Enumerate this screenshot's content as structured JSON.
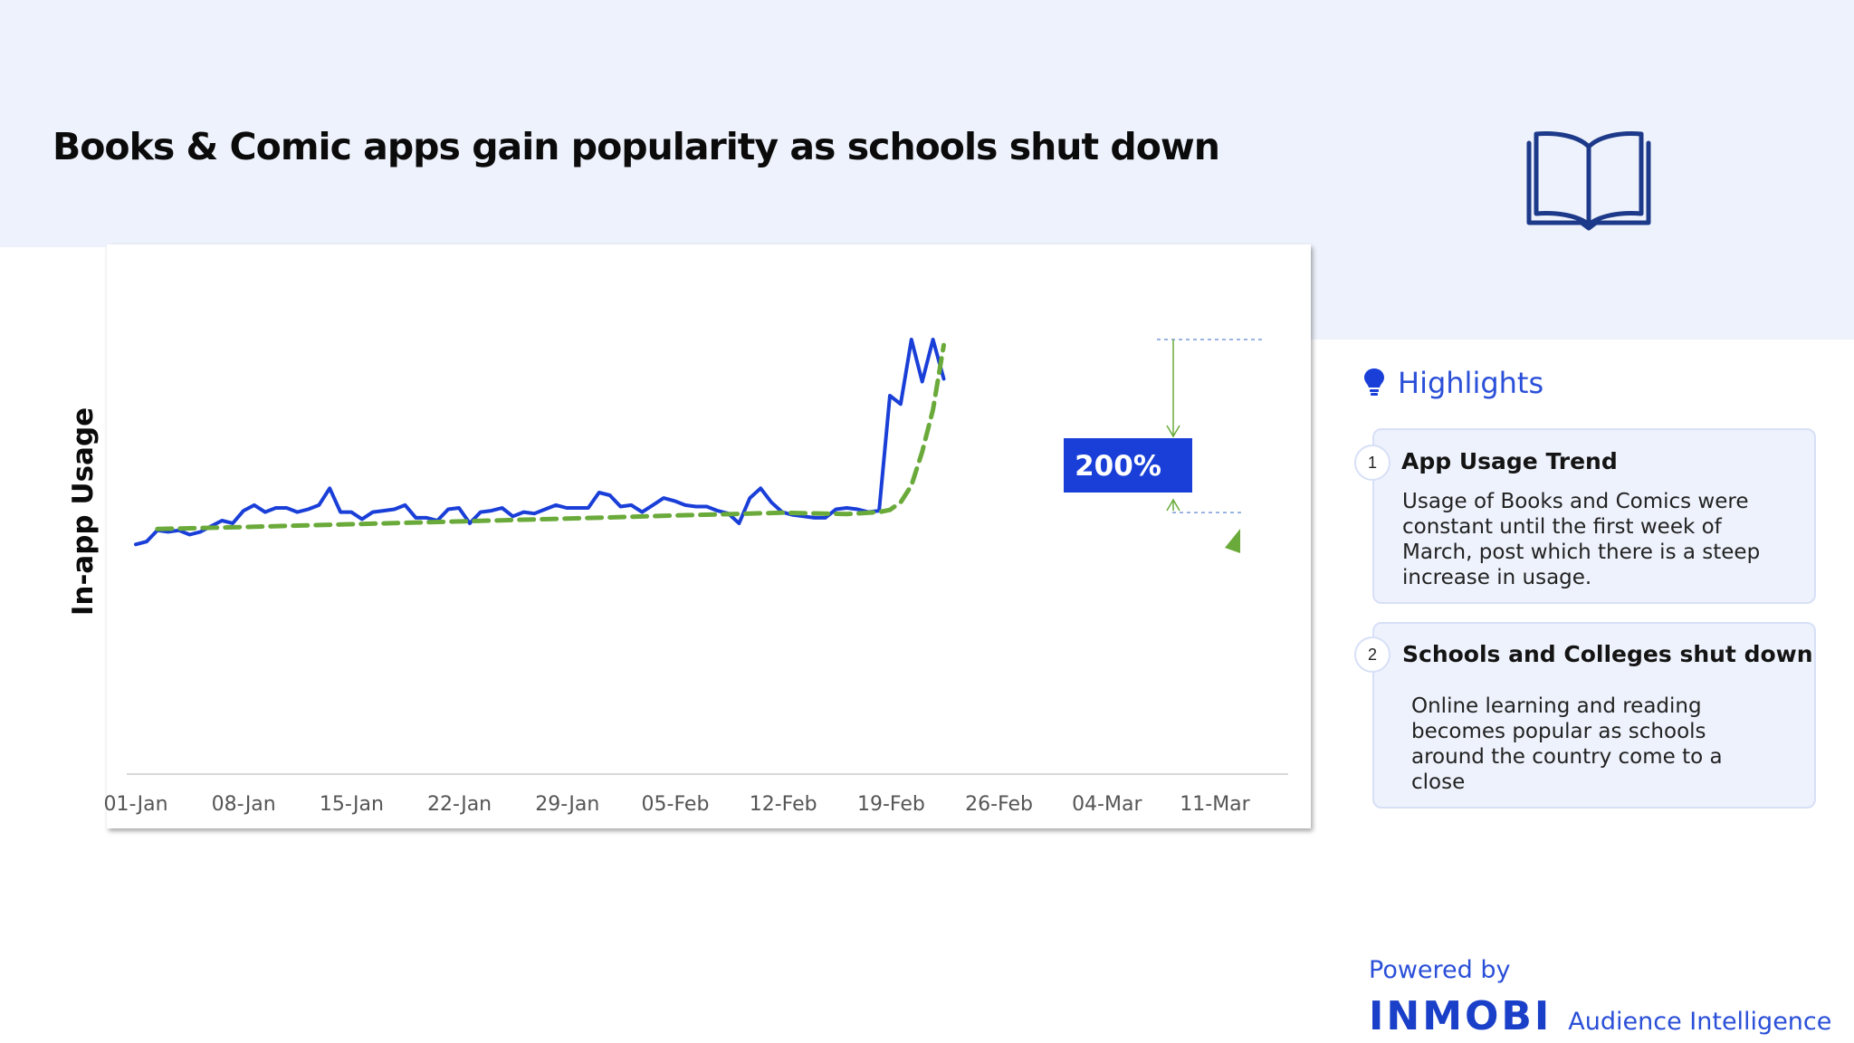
{
  "title": "Books & Comic apps gain popularity as schools shut down",
  "highlights": {
    "heading": "Highlights",
    "icon": "lightbulb-icon",
    "items": [
      {
        "number": "1",
        "title": "App Usage Trend",
        "body": "Usage of Books and Comics were constant until the first week of March, post which there is a steep increase in usage."
      },
      {
        "number": "2",
        "title": "Schools and Colleges shut down",
        "body": "Online learning and reading becomes popular as schools around the country come to a close"
      }
    ]
  },
  "footer": {
    "powered_by": "Powered by",
    "logo": "INMOBI",
    "product": "Audience Intelligence"
  },
  "header_icon": "open-book-icon",
  "colors": {
    "accent": "#1a3fd8",
    "trend": "#6aaa3a",
    "band": "#eef2fc"
  },
  "chart_data": {
    "type": "line",
    "title": "",
    "ylabel": "In-app Usage",
    "xlabel": "",
    "x_tick_labels": [
      "01-Jan",
      "08-Jan",
      "15-Jan",
      "22-Jan",
      "29-Jan",
      "05-Feb",
      "12-Feb",
      "19-Feb",
      "26-Feb",
      "04-Mar",
      "11-Mar"
    ],
    "x_start": "01-Jan",
    "x_unit": "days",
    "ylim": [
      0,
      100
    ],
    "grid": false,
    "annotation": "200%",
    "series": [
      {
        "style": "solid",
        "color": "#1a3fd8",
        "values": [
          27,
          28,
          32,
          31.5,
          32,
          30.5,
          31.5,
          33.5,
          35.5,
          34.5,
          39,
          41,
          38.5,
          40,
          40,
          38.5,
          39.5,
          41,
          47,
          38.5,
          38.5,
          36,
          38.5,
          39,
          39.5,
          41,
          36.5,
          36.5,
          35.5,
          39.5,
          40,
          34.5,
          38.5,
          39,
          40,
          37,
          38.5,
          38,
          39.5,
          41,
          40,
          40,
          40,
          45.5,
          44.5,
          40.5,
          41,
          38.5,
          41,
          43.5,
          42.5,
          41,
          40.5,
          40.5,
          39,
          38,
          34.5,
          43.5,
          47,
          42,
          38.5,
          37.5,
          37,
          36.5,
          36.5,
          39.5,
          40,
          39.5,
          38.5,
          39,
          80,
          77,
          100,
          85,
          100,
          86
        ]
      },
      {
        "style": "dashed",
        "color": "#6aaa3a",
        "points": [
          [
            2,
            32.5
          ],
          [
            10,
            33.2
          ],
          [
            20,
            34.2
          ],
          [
            30,
            35.2
          ],
          [
            40,
            36.2
          ],
          [
            50,
            37.3
          ],
          [
            60,
            38.3
          ],
          [
            66,
            37.8
          ],
          [
            69,
            38.5
          ],
          [
            70,
            39.3
          ],
          [
            71,
            42
          ],
          [
            72,
            48
          ],
          [
            73,
            60
          ],
          [
            74,
            75
          ],
          [
            75,
            98
          ]
        ]
      }
    ]
  }
}
